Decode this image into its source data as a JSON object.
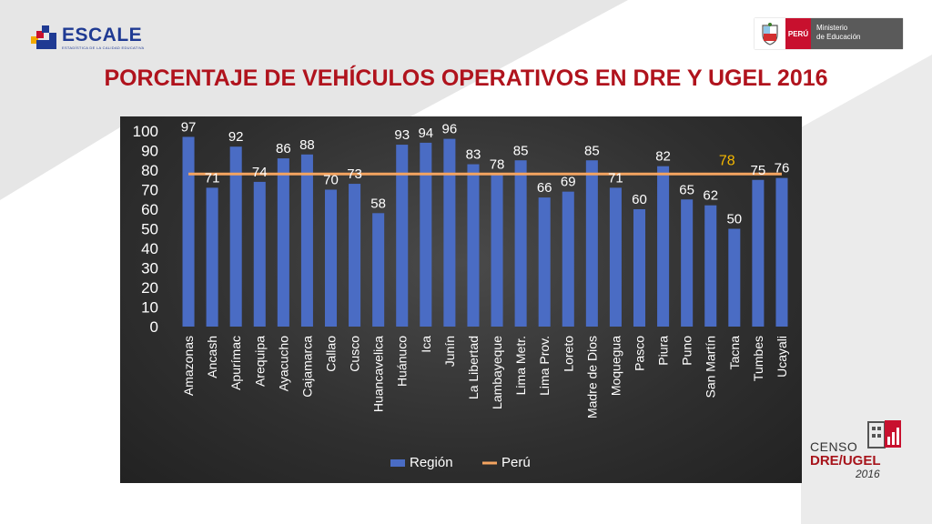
{
  "header": {
    "logo_name": "ESCALE",
    "logo_tagline": "ESTADÍSTICA DE LA CALIDAD EDUCATIVA",
    "ministry_country": "PERÚ",
    "ministry_name_line1": "Ministerio",
    "ministry_name_line2": "de Educación"
  },
  "title": "PORCENTAJE DE VEHÍCULOS OPERATIVOS EN DRE Y UGEL 2016",
  "footer": {
    "censo_line1": "CENSO",
    "censo_line2": "DRE/UGEL",
    "censo_line3": "2016"
  },
  "colors": {
    "title": "#b0131d",
    "bar": "#4a6cc4",
    "line": "#f4a460",
    "highlight_label": "#f5b800",
    "panel_bg": "#333333"
  },
  "chart_data": {
    "type": "bar",
    "categories": [
      "Amazonas",
      "Ancash",
      "Apurímac",
      "Arequipa",
      "Ayacucho",
      "Cajamarca",
      "Callao",
      "Cusco",
      "Huancavelica",
      "Huánuco",
      "Ica",
      "Junín",
      "La Libertad",
      "Lambayeque",
      "Lima Metr.",
      "Lima Prov.",
      "Loreto",
      "Madre de Dios",
      "Moquegua",
      "Pasco",
      "Piura",
      "Puno",
      "San Martín",
      "Tacna",
      "Tumbes",
      "Ucayali"
    ],
    "series": [
      {
        "name": "Región",
        "type": "bar",
        "values": [
          97,
          71,
          92,
          74,
          86,
          88,
          70,
          73,
          58,
          93,
          94,
          96,
          83,
          78,
          85,
          66,
          69,
          85,
          71,
          60,
          82,
          65,
          62,
          50,
          75,
          76
        ]
      },
      {
        "name": "Perú",
        "type": "line",
        "value": 78,
        "label": "78"
      }
    ],
    "ylim": [
      0,
      100
    ],
    "yticks": [
      "0",
      "10",
      "20",
      "30",
      "40",
      "50",
      "60",
      "70",
      "80",
      "90",
      "100"
    ],
    "legend_position": "bottom",
    "grid": false
  }
}
